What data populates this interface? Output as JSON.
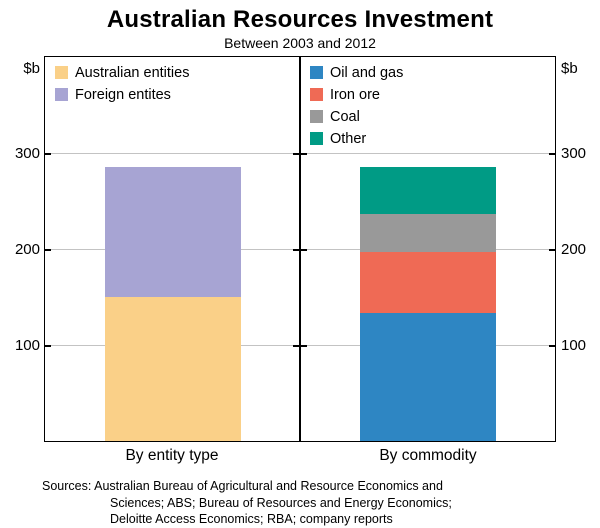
{
  "title": "Australian Resources Investment",
  "subtitle": "Between 2003 and 2012",
  "y_axis": {
    "unit_label": "$b",
    "ticks": [
      100,
      200,
      300
    ]
  },
  "x_labels": {
    "left": "By entity type",
    "right": "By commodity"
  },
  "chart_data": {
    "type": "bar",
    "stacked": true,
    "ylim": [
      0,
      400
    ],
    "ylabel": "$b",
    "grid": true,
    "legend_position": "top-left-of-each-panel",
    "panels": [
      {
        "category": "By entity type",
        "segments": [
          {
            "name": "Australian entities",
            "value": 150,
            "color": "#FAD088"
          },
          {
            "name": "Foreign entites",
            "value": 135,
            "color": "#A7A4D3"
          }
        ]
      },
      {
        "category": "By commodity",
        "segments": [
          {
            "name": "Oil and gas",
            "value": 133,
            "color": "#2E86C3"
          },
          {
            "name": "Iron ore",
            "value": 64,
            "color": "#EF6A55"
          },
          {
            "name": "Coal",
            "value": 39,
            "color": "#999999"
          },
          {
            "name": "Other",
            "value": 49,
            "color": "#009B85"
          }
        ]
      }
    ]
  },
  "footer": {
    "lines": [
      "Sources: Australian Bureau of Agricultural and Resource Economics and",
      "Sciences; ABS; Bureau of Resources and Energy Economics;",
      "Deloitte Access Economics; RBA; company reports"
    ]
  }
}
